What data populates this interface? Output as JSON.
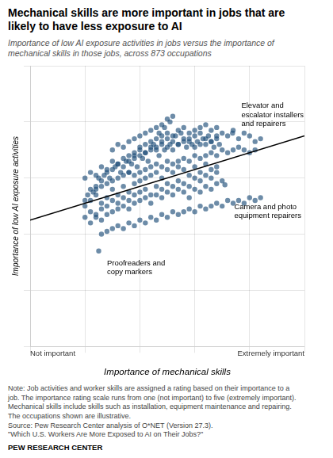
{
  "chart_data": {
    "type": "scatter",
    "title": "Mechanical skills are more important in jobs that are\nlikely to have less exposure to AI",
    "subtitle": "Importance of low AI exposure activities in jobs versus the importance of\nmechanical skills in those jobs, across 873 occupations",
    "xlabel": "Importance of mechanical skills",
    "ylabel": "Importance of low AI exposure activities",
    "xlabel_note_left": "Not important",
    "xlabel_note_right": "Extremely important",
    "xlim": [
      0,
      5
    ],
    "ylim": [
      0,
      5
    ],
    "xticks": [
      0,
      1,
      2,
      3,
      4,
      5
    ],
    "yticks": [
      0,
      1,
      2,
      3,
      4,
      5
    ],
    "grid": true,
    "tick_labels": false,
    "series": [
      {
        "type": "scatter",
        "color": "#1f4e79",
        "x": [
          1.0,
          1.05,
          1.1,
          1.15,
          1.2,
          1.25,
          1.3,
          1.35,
          1.4,
          1.45,
          1.5,
          1.55,
          1.6,
          1.65,
          1.7,
          1.75,
          1.8,
          1.85,
          1.9,
          1.95,
          2.0,
          2.05,
          2.1,
          2.15,
          2.2,
          2.25,
          2.3,
          2.35,
          2.4,
          2.45,
          2.5,
          2.55,
          2.6,
          2.65,
          2.7,
          2.75,
          2.8,
          2.85,
          2.9,
          2.95,
          3.0,
          3.05,
          3.1,
          3.15,
          3.2,
          3.25,
          3.3,
          3.35,
          3.4,
          3.45,
          1.0,
          1.1,
          1.2,
          1.3,
          1.4,
          1.5,
          1.6,
          1.7,
          1.8,
          1.9,
          2.0,
          2.1,
          2.2,
          2.3,
          2.4,
          2.5,
          2.6,
          2.7,
          2.8,
          2.9,
          3.0,
          3.1,
          3.2,
          3.3,
          3.4,
          1.0,
          1.1,
          1.2,
          1.3,
          1.4,
          1.5,
          1.6,
          1.7,
          1.8,
          1.9,
          2.0,
          2.1,
          2.2,
          2.3,
          2.4,
          2.5,
          2.6,
          2.7,
          2.8,
          2.9,
          3.0,
          3.1,
          3.2,
          3.3,
          3.4,
          1.0,
          1.1,
          1.2,
          1.3,
          1.4,
          1.5,
          1.6,
          1.7,
          1.8,
          1.9,
          2.0,
          2.1,
          2.2,
          2.3,
          2.4,
          2.5,
          2.6,
          2.7,
          2.8,
          2.9,
          3.0,
          3.1,
          3.2,
          3.3,
          3.4,
          1.1,
          1.2,
          1.3,
          1.4,
          1.5,
          1.6,
          1.7,
          1.8,
          1.9,
          2.0,
          2.1,
          2.2,
          2.3,
          2.4,
          2.5,
          2.6,
          2.7,
          2.8,
          2.9,
          3.0,
          3.1,
          3.2,
          3.3,
          3.4,
          3.5,
          1.5,
          1.6,
          1.7,
          1.8,
          1.9,
          2.0,
          2.1,
          2.2,
          2.3,
          2.4,
          2.5,
          2.6,
          2.35,
          2.45,
          2.55,
          1.8,
          1.9,
          2.0,
          2.1,
          2.2,
          2.3,
          2.4,
          2.5,
          2.6,
          2.7,
          2.8,
          2.9,
          3.0,
          3.1,
          3.2,
          3.3,
          3.4,
          3.5,
          3.6,
          3.7,
          3.8,
          3.9,
          4.0,
          4.1,
          4.2,
          1.2,
          1.3,
          1.4,
          1.5,
          1.6,
          1.7,
          1.8,
          1.9,
          2.0,
          2.1,
          2.2,
          2.3,
          2.4,
          2.5,
          2.6,
          2.7,
          2.8,
          2.9,
          3.0,
          3.1,
          3.2,
          3.3,
          3.4,
          3.5,
          3.6,
          3.7,
          3.8,
          3.9,
          4.0,
          4.1,
          1.3,
          1.4,
          1.5,
          1.6,
          1.7,
          1.8,
          1.9,
          2.0,
          2.1,
          2.2,
          2.3,
          2.4,
          2.5,
          2.6,
          2.7,
          2.8,
          2.9,
          3.0,
          3.1,
          3.2,
          3.3,
          3.4,
          3.5,
          3.6,
          3.7,
          3.8,
          3.9,
          4.0,
          4.1,
          4.2,
          3.69,
          3.55,
          1.25
        ],
        "values": [
          2.6,
          2.7,
          2.8,
          2.75,
          2.85,
          3.0,
          2.95,
          3.05,
          3.1,
          3.0,
          3.15,
          3.2,
          3.25,
          3.1,
          3.2,
          3.3,
          3.1,
          3.25,
          3.35,
          3.2,
          3.4,
          3.35,
          3.45,
          3.3,
          3.5,
          3.6,
          3.55,
          3.4,
          3.65,
          3.5,
          3.7,
          3.6,
          3.5,
          3.75,
          3.6,
          3.8,
          3.65,
          3.55,
          3.7,
          3.6,
          3.75,
          3.65,
          3.8,
          3.7,
          3.6,
          3.75,
          3.65,
          3.55,
          3.7,
          3.6,
          2.5,
          2.6,
          2.7,
          2.55,
          2.65,
          2.8,
          2.7,
          2.85,
          2.75,
          2.9,
          2.95,
          3.0,
          3.05,
          3.1,
          3.0,
          3.15,
          3.1,
          3.2,
          3.15,
          3.05,
          3.2,
          3.1,
          3.25,
          3.15,
          3.2,
          3.0,
          3.1,
          3.05,
          3.2,
          3.15,
          3.3,
          3.25,
          3.35,
          3.3,
          3.4,
          3.5,
          3.45,
          3.55,
          3.5,
          3.6,
          3.55,
          3.65,
          3.6,
          3.7,
          3.65,
          3.55,
          3.6,
          3.7,
          3.65,
          3.75,
          2.3,
          2.4,
          2.35,
          2.45,
          2.5,
          2.6,
          2.55,
          2.65,
          2.6,
          2.7,
          2.75,
          2.8,
          2.7,
          2.85,
          2.8,
          2.9,
          2.85,
          2.95,
          2.9,
          2.85,
          3.0,
          2.95,
          3.05,
          3.0,
          3.1,
          2.2,
          2.3,
          2.25,
          2.35,
          2.4,
          2.45,
          2.5,
          2.45,
          2.55,
          2.6,
          2.65,
          2.55,
          2.7,
          2.65,
          2.75,
          2.7,
          2.8,
          2.75,
          2.65,
          2.8,
          2.75,
          2.85,
          2.8,
          2.9,
          2.95,
          3.5,
          3.6,
          3.55,
          3.65,
          3.7,
          3.75,
          3.8,
          3.85,
          3.9,
          3.95,
          4.05,
          4.1,
          3.8,
          3.9,
          4.0,
          3.4,
          3.45,
          3.55,
          3.6,
          3.65,
          3.7,
          3.75,
          3.8,
          3.75,
          3.85,
          3.9,
          3.8,
          3.85,
          3.9,
          3.95,
          3.85,
          3.9,
          3.8,
          3.75,
          3.85,
          3.7,
          3.8,
          3.75,
          3.65,
          3.7,
          2.8,
          2.85,
          2.9,
          2.95,
          3.0,
          3.05,
          3.1,
          3.05,
          3.1,
          3.15,
          3.2,
          3.25,
          3.2,
          3.3,
          3.25,
          3.3,
          3.35,
          3.3,
          3.4,
          3.35,
          3.4,
          3.45,
          3.4,
          3.5,
          3.45,
          3.5,
          3.55,
          3.5,
          3.45,
          3.5,
          2.0,
          2.05,
          2.1,
          2.15,
          2.1,
          2.2,
          2.15,
          2.25,
          2.2,
          2.3,
          2.25,
          2.35,
          2.3,
          2.4,
          2.35,
          2.4,
          2.45,
          2.4,
          2.5,
          2.45,
          2.5,
          2.55,
          2.5,
          2.6,
          2.55,
          2.6,
          2.55,
          2.65,
          2.6,
          2.65,
          3.8,
          2.88,
          1.7
        ]
      },
      {
        "type": "line",
        "color": "#000000",
        "x": [
          0,
          5
        ],
        "values": [
          2.25,
          3.75
        ]
      }
    ],
    "annotations": [
      {
        "text": "Elevator and\nescalator installers\nand repairers",
        "x": 3.85,
        "y": 4.35
      },
      {
        "text": "Camera and photo\nequipment repairers",
        "x": 3.72,
        "y": 2.55
      },
      {
        "text": "Proofreaders and\ncopy markers",
        "x": 1.4,
        "y": 1.55
      }
    ],
    "note": "Note: Job activities and worker skills are assigned a rating based on their importance to a\njob. The importance rating scale runs from one (not important) to five (extremely important).\nMechanical skills include skills such as installation, equipment maintenance and repairing.\nThe occupations shown are illustrative.\nSource: Pew Research Center analysis of O*NET (Version 27.3).\n\"Which U.S. Workers Are More Exposed to AI on Their Jobs?\"",
    "source": "PEW RESEARCH CENTER"
  }
}
